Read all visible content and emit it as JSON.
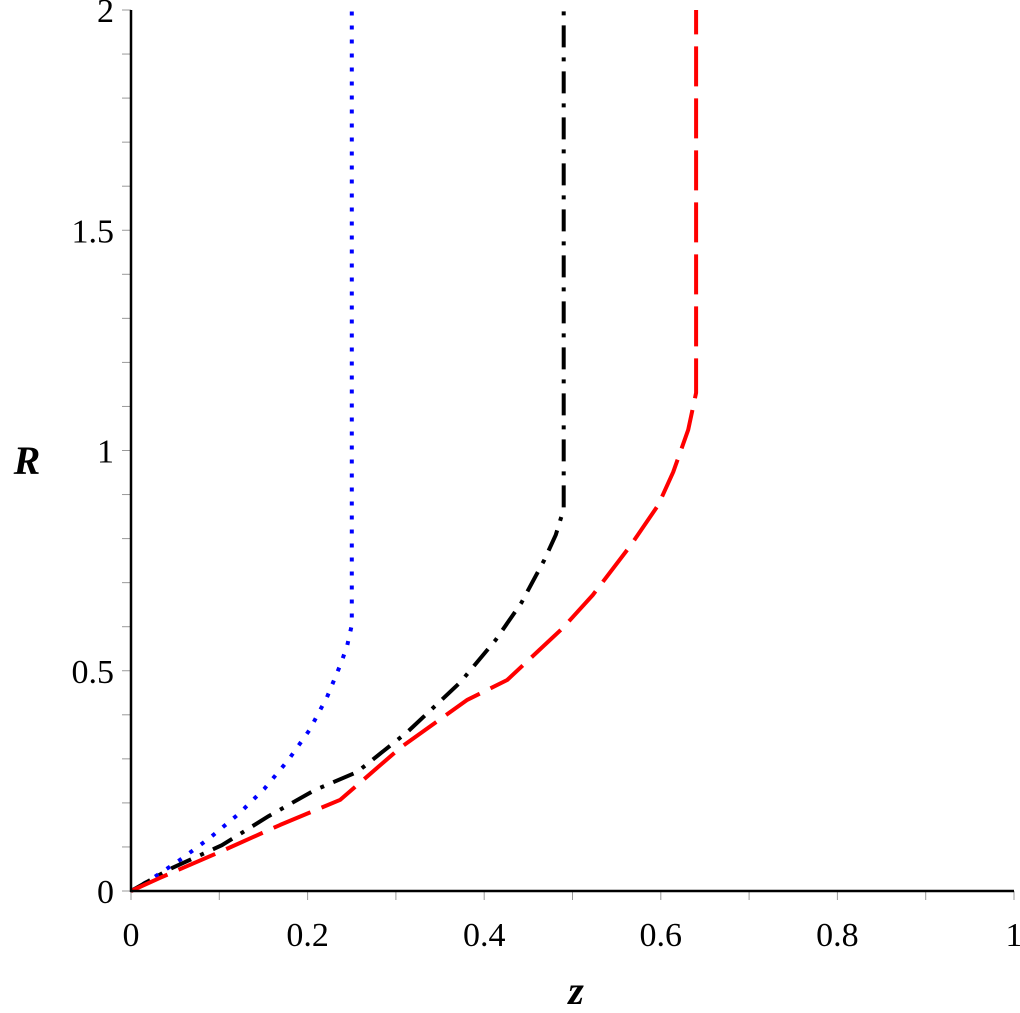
{
  "chart_data": {
    "type": "line",
    "title": "",
    "xlabel": "z",
    "ylabel": "R",
    "xlim": [
      0,
      1
    ],
    "ylim": [
      0,
      2
    ],
    "grid": false,
    "legend": null,
    "x_ticks": [
      {
        "value": 0,
        "label": "0"
      },
      {
        "value": 0.2,
        "label": "0.2"
      },
      {
        "value": 0.4,
        "label": "0.4"
      },
      {
        "value": 0.6,
        "label": "0.6"
      },
      {
        "value": 0.8,
        "label": "0.8"
      },
      {
        "value": 1,
        "label": "1"
      }
    ],
    "y_ticks": [
      {
        "value": 0,
        "label": "0"
      },
      {
        "value": 0.5,
        "label": "0.5"
      },
      {
        "value": 1,
        "label": "1"
      },
      {
        "value": 1.5,
        "label": "1.5"
      },
      {
        "value": 2,
        "label": "2"
      }
    ],
    "x_minor_step": 0.1,
    "y_minor_step": 0.1,
    "series": [
      {
        "name": "blue-dotted",
        "color": "#0000FF",
        "style": "dotted",
        "x": [
          0,
          0.0215,
          0.055,
          0.089,
          0.122,
          0.151,
          0.178,
          0.202,
          0.222,
          0.238,
          0.245,
          0.25,
          0.25
        ],
        "y": [
          0,
          0.025,
          0.07,
          0.12,
          0.175,
          0.232,
          0.297,
          0.365,
          0.44,
          0.518,
          0.558,
          0.604,
          2.0
        ]
      },
      {
        "name": "black-dashdot",
        "color": "#000000",
        "style": "dashdot",
        "x": [
          0,
          0.044,
          0.103,
          0.156,
          0.208,
          0.256,
          0.313,
          0.373,
          0.413,
          0.442,
          0.468,
          0.481,
          0.49,
          0.49
        ],
        "y": [
          0,
          0.05,
          0.104,
          0.17,
          0.229,
          0.27,
          0.361,
          0.474,
          0.57,
          0.654,
          0.751,
          0.808,
          0.867,
          2.0
        ]
      },
      {
        "name": "red-longdash",
        "color": "#FF0000",
        "style": "longdash",
        "x": [
          0,
          0.033,
          0.101,
          0.169,
          0.237,
          0.305,
          0.381,
          0.426,
          0.489,
          0.523,
          0.566,
          0.597,
          0.614,
          0.631,
          0.64,
          0.64
        ],
        "y": [
          0,
          0.03,
          0.089,
          0.15,
          0.207,
          0.325,
          0.434,
          0.479,
          0.597,
          0.672,
          0.785,
          0.876,
          0.951,
          1.047,
          1.131,
          2.0
        ]
      }
    ]
  }
}
